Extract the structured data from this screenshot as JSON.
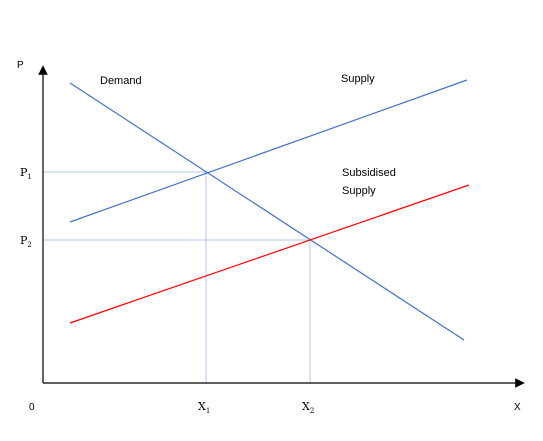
{
  "diagram": {
    "axes": {
      "y_label": "P",
      "x_label": "X",
      "origin_label": "0"
    },
    "price_levels": [
      {
        "base": "P",
        "sub": "1"
      },
      {
        "base": "P",
        "sub": "2"
      }
    ],
    "quantity_levels": [
      {
        "base": "X",
        "sub": "1"
      },
      {
        "base": "X",
        "sub": "2"
      }
    ],
    "curves": {
      "demand": {
        "label": "Demand",
        "color": "#4472c4"
      },
      "supply": {
        "label": "Supply",
        "color": "#4472c4"
      },
      "subsidised_supply": {
        "label_line1": "Subsidised",
        "label_line2": "Supply",
        "color": "#ff0000"
      }
    },
    "guide_color": "#b4c7e7",
    "axis_color": "#000000"
  }
}
